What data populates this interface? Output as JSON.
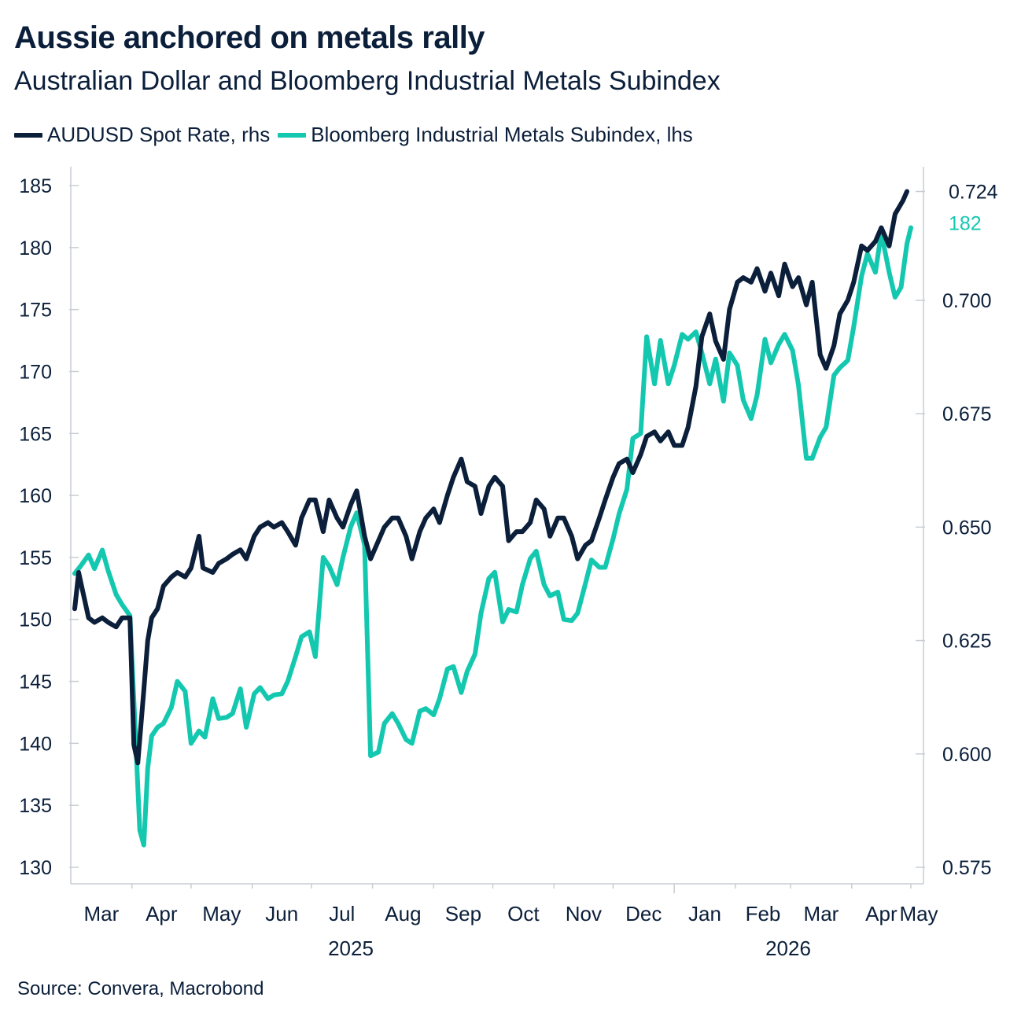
{
  "header": {
    "title": "Aussie anchored on metals rally",
    "subtitle": "Australian Dollar and Bloomberg Industrial Metals Subindex"
  },
  "legend": {
    "items": [
      {
        "label": "AUDUSD Spot Rate, rhs",
        "color": "#0b1f3a"
      },
      {
        "label": "Bloomberg Industrial Metals Subindex, lhs",
        "color": "#14c8b0"
      }
    ]
  },
  "footer": {
    "source": "Source: Convera, Macrobond"
  },
  "chart_data": {
    "type": "line",
    "x_axis": {
      "month_labels": [
        "Mar",
        "Apr",
        "May",
        "Jun",
        "Jul",
        "Aug",
        "Sep",
        "Oct",
        "Nov",
        "Dec",
        "Jan",
        "Feb",
        "Mar",
        "Apr",
        "May"
      ],
      "year_labels": [
        "2025",
        "2026"
      ],
      "start": "2025-03-01",
      "end": "2026-05-01"
    },
    "y_left": {
      "series": "Bloomberg Industrial Metals Subindex, lhs",
      "ylim": [
        130,
        185
      ],
      "ticks": [
        "185",
        "180",
        "175",
        "170",
        "165",
        "160",
        "155",
        "150",
        "145",
        "140",
        "135",
        "130"
      ]
    },
    "y_right": {
      "series": "AUDUSD Spot Rate, rhs",
      "ylim": [
        0.575,
        0.7253
      ],
      "ticks": [
        "0.700",
        "0.675",
        "0.650",
        "0.625",
        "0.600",
        "0.575"
      ]
    },
    "end_labels": {
      "AUDUSD Spot Rate, rhs": "0.724",
      "Bloomberg Industrial Metals Subindex, lhs": "182"
    },
    "grid": false,
    "legend_position": "top-left",
    "series": [
      {
        "name": "AUDUSD Spot Rate, rhs",
        "axis": "right",
        "color": "#0b1f3a",
        "points": [
          [
            "2025-03-03",
            0.632
          ],
          [
            "2025-03-05",
            0.64
          ],
          [
            "2025-03-07",
            0.636
          ],
          [
            "2025-03-10",
            0.63
          ],
          [
            "2025-03-13",
            0.629
          ],
          [
            "2025-03-17",
            0.63
          ],
          [
            "2025-03-20",
            0.629
          ],
          [
            "2025-03-24",
            0.628
          ],
          [
            "2025-03-27",
            0.63
          ],
          [
            "2025-03-31",
            0.63
          ],
          [
            "2025-04-02",
            0.602
          ],
          [
            "2025-04-04",
            0.598
          ],
          [
            "2025-04-07",
            0.614
          ],
          [
            "2025-04-09",
            0.625
          ],
          [
            "2025-04-11",
            0.63
          ],
          [
            "2025-04-14",
            0.632
          ],
          [
            "2025-04-17",
            0.637
          ],
          [
            "2025-04-21",
            0.639
          ],
          [
            "2025-04-24",
            0.64
          ],
          [
            "2025-04-28",
            0.639
          ],
          [
            "2025-05-01",
            0.641
          ],
          [
            "2025-05-05",
            0.648
          ],
          [
            "2025-05-07",
            0.641
          ],
          [
            "2025-05-12",
            0.64
          ],
          [
            "2025-05-15",
            0.642
          ],
          [
            "2025-05-19",
            0.643
          ],
          [
            "2025-05-22",
            0.644
          ],
          [
            "2025-05-26",
            0.645
          ],
          [
            "2025-05-29",
            0.643
          ],
          [
            "2025-06-02",
            0.648
          ],
          [
            "2025-06-05",
            0.65
          ],
          [
            "2025-06-09",
            0.651
          ],
          [
            "2025-06-12",
            0.65
          ],
          [
            "2025-06-16",
            0.651
          ],
          [
            "2025-06-19",
            0.649
          ],
          [
            "2025-06-23",
            0.646
          ],
          [
            "2025-06-26",
            0.652
          ],
          [
            "2025-06-30",
            0.656
          ],
          [
            "2025-07-03",
            0.656
          ],
          [
            "2025-07-07",
            0.649
          ],
          [
            "2025-07-10",
            0.656
          ],
          [
            "2025-07-14",
            0.652
          ],
          [
            "2025-07-17",
            0.65
          ],
          [
            "2025-07-21",
            0.655
          ],
          [
            "2025-07-24",
            0.658
          ],
          [
            "2025-07-28",
            0.648
          ],
          [
            "2025-07-31",
            0.643
          ],
          [
            "2025-08-04",
            0.647
          ],
          [
            "2025-08-07",
            0.65
          ],
          [
            "2025-08-11",
            0.652
          ],
          [
            "2025-08-14",
            0.652
          ],
          [
            "2025-08-18",
            0.648
          ],
          [
            "2025-08-21",
            0.643
          ],
          [
            "2025-08-25",
            0.649
          ],
          [
            "2025-08-28",
            0.652
          ],
          [
            "2025-09-01",
            0.654
          ],
          [
            "2025-09-04",
            0.651
          ],
          [
            "2025-09-08",
            0.657
          ],
          [
            "2025-09-11",
            0.661
          ],
          [
            "2025-09-15",
            0.665
          ],
          [
            "2025-09-18",
            0.66
          ],
          [
            "2025-09-22",
            0.659
          ],
          [
            "2025-09-25",
            0.653
          ],
          [
            "2025-09-29",
            0.659
          ],
          [
            "2025-10-02",
            0.661
          ],
          [
            "2025-10-06",
            0.659
          ],
          [
            "2025-10-09",
            0.647
          ],
          [
            "2025-10-13",
            0.649
          ],
          [
            "2025-10-16",
            0.649
          ],
          [
            "2025-10-20",
            0.651
          ],
          [
            "2025-10-23",
            0.656
          ],
          [
            "2025-10-27",
            0.654
          ],
          [
            "2025-10-30",
            0.648
          ],
          [
            "2025-11-03",
            0.652
          ],
          [
            "2025-11-06",
            0.652
          ],
          [
            "2025-11-10",
            0.648
          ],
          [
            "2025-11-13",
            0.643
          ],
          [
            "2025-11-17",
            0.646
          ],
          [
            "2025-11-20",
            0.647
          ],
          [
            "2025-11-24",
            0.652
          ],
          [
            "2025-11-27",
            0.656
          ],
          [
            "2025-12-01",
            0.661
          ],
          [
            "2025-12-04",
            0.664
          ],
          [
            "2025-12-08",
            0.665
          ],
          [
            "2025-12-11",
            0.662
          ],
          [
            "2025-12-15",
            0.666
          ],
          [
            "2025-12-18",
            0.67
          ],
          [
            "2025-12-22",
            0.671
          ],
          [
            "2025-12-25",
            0.669
          ],
          [
            "2025-12-29",
            0.671
          ],
          [
            "2026-01-01",
            0.668
          ],
          [
            "2026-01-05",
            0.668
          ],
          [
            "2026-01-08",
            0.672
          ],
          [
            "2026-01-12",
            0.681
          ],
          [
            "2026-01-15",
            0.692
          ],
          [
            "2026-01-19",
            0.697
          ],
          [
            "2026-01-22",
            0.691
          ],
          [
            "2026-01-26",
            0.687
          ],
          [
            "2026-01-29",
            0.698
          ],
          [
            "2026-02-02",
            0.704
          ],
          [
            "2026-02-05",
            0.705
          ],
          [
            "2026-02-09",
            0.704
          ],
          [
            "2026-02-12",
            0.707
          ],
          [
            "2026-02-16",
            0.702
          ],
          [
            "2026-02-19",
            0.706
          ],
          [
            "2026-02-23",
            0.701
          ],
          [
            "2026-02-26",
            0.708
          ],
          [
            "2026-03-02",
            0.703
          ],
          [
            "2026-03-05",
            0.705
          ],
          [
            "2026-03-09",
            0.699
          ],
          [
            "2026-03-12",
            0.704
          ],
          [
            "2026-03-16",
            0.688
          ],
          [
            "2026-03-19",
            0.685
          ],
          [
            "2026-03-23",
            0.69
          ],
          [
            "2026-03-26",
            0.697
          ],
          [
            "2026-03-30",
            0.7
          ],
          [
            "2026-04-02",
            0.704
          ],
          [
            "2026-04-06",
            0.712
          ],
          [
            "2026-04-09",
            0.711
          ],
          [
            "2026-04-13",
            0.713
          ],
          [
            "2026-04-16",
            0.716
          ],
          [
            "2026-04-20",
            0.712
          ],
          [
            "2026-04-23",
            0.719
          ],
          [
            "2026-04-27",
            0.722
          ],
          [
            "2026-04-29",
            0.724
          ]
        ]
      },
      {
        "name": "Bloomberg Industrial Metals Subindex, lhs",
        "axis": "left",
        "color": "#14c8b0",
        "points": [
          [
            "2025-03-03",
            153.7
          ],
          [
            "2025-03-06",
            154.3
          ],
          [
            "2025-03-10",
            155.2
          ],
          [
            "2025-03-13",
            154.1
          ],
          [
            "2025-03-17",
            155.6
          ],
          [
            "2025-03-20",
            153.9
          ],
          [
            "2025-03-24",
            152.0
          ],
          [
            "2025-03-27",
            151.2
          ],
          [
            "2025-03-31",
            150.3
          ],
          [
            "2025-04-03",
            140.0
          ],
          [
            "2025-04-05",
            133.0
          ],
          [
            "2025-04-07",
            131.8
          ],
          [
            "2025-04-09",
            138.0
          ],
          [
            "2025-04-11",
            140.6
          ],
          [
            "2025-04-14",
            141.3
          ],
          [
            "2025-04-17",
            141.6
          ],
          [
            "2025-04-21",
            142.9
          ],
          [
            "2025-04-24",
            145.0
          ],
          [
            "2025-04-28",
            144.2
          ],
          [
            "2025-05-01",
            140.0
          ],
          [
            "2025-05-05",
            141.0
          ],
          [
            "2025-05-08",
            140.5
          ],
          [
            "2025-05-12",
            143.6
          ],
          [
            "2025-05-15",
            142.0
          ],
          [
            "2025-05-19",
            142.1
          ],
          [
            "2025-05-22",
            142.4
          ],
          [
            "2025-05-26",
            144.4
          ],
          [
            "2025-05-29",
            141.3
          ],
          [
            "2025-06-02",
            144.0
          ],
          [
            "2025-06-05",
            144.5
          ],
          [
            "2025-06-09",
            143.6
          ],
          [
            "2025-06-12",
            143.9
          ],
          [
            "2025-06-16",
            144.0
          ],
          [
            "2025-06-19",
            145.0
          ],
          [
            "2025-06-23",
            147.0
          ],
          [
            "2025-06-26",
            148.6
          ],
          [
            "2025-06-30",
            149.0
          ],
          [
            "2025-07-03",
            147.0
          ],
          [
            "2025-07-07",
            155.0
          ],
          [
            "2025-07-10",
            154.3
          ],
          [
            "2025-07-14",
            152.8
          ],
          [
            "2025-07-17",
            155.0
          ],
          [
            "2025-07-21",
            157.5
          ],
          [
            "2025-07-24",
            158.6
          ],
          [
            "2025-07-28",
            156.0
          ],
          [
            "2025-07-31",
            139.0
          ],
          [
            "2025-08-04",
            139.3
          ],
          [
            "2025-08-07",
            141.6
          ],
          [
            "2025-08-11",
            142.4
          ],
          [
            "2025-08-14",
            141.6
          ],
          [
            "2025-08-18",
            140.3
          ],
          [
            "2025-08-21",
            140.0
          ],
          [
            "2025-08-25",
            142.6
          ],
          [
            "2025-08-28",
            142.8
          ],
          [
            "2025-09-01",
            142.3
          ],
          [
            "2025-09-04",
            143.6
          ],
          [
            "2025-09-08",
            146.0
          ],
          [
            "2025-09-11",
            146.2
          ],
          [
            "2025-09-15",
            144.1
          ],
          [
            "2025-09-18",
            145.8
          ],
          [
            "2025-09-22",
            147.2
          ],
          [
            "2025-09-25",
            150.5
          ],
          [
            "2025-09-29",
            153.3
          ],
          [
            "2025-10-02",
            153.8
          ],
          [
            "2025-10-06",
            149.8
          ],
          [
            "2025-10-09",
            150.8
          ],
          [
            "2025-10-13",
            150.6
          ],
          [
            "2025-10-16",
            152.8
          ],
          [
            "2025-10-20",
            154.9
          ],
          [
            "2025-10-23",
            155.5
          ],
          [
            "2025-10-27",
            152.8
          ],
          [
            "2025-10-30",
            151.9
          ],
          [
            "2025-11-03",
            152.2
          ],
          [
            "2025-11-06",
            150.0
          ],
          [
            "2025-11-10",
            149.9
          ],
          [
            "2025-11-13",
            150.5
          ],
          [
            "2025-11-17",
            152.9
          ],
          [
            "2025-11-20",
            154.8
          ],
          [
            "2025-11-24",
            154.2
          ],
          [
            "2025-11-27",
            154.2
          ],
          [
            "2025-12-01",
            156.5
          ],
          [
            "2025-12-04",
            158.5
          ],
          [
            "2025-12-08",
            160.5
          ],
          [
            "2025-12-11",
            164.6
          ],
          [
            "2025-12-15",
            165.0
          ],
          [
            "2025-12-18",
            172.8
          ],
          [
            "2025-12-22",
            169.0
          ],
          [
            "2025-12-25",
            172.5
          ],
          [
            "2025-12-29",
            169.0
          ],
          [
            "2026-01-01",
            170.5
          ],
          [
            "2026-01-05",
            173.0
          ],
          [
            "2026-01-08",
            172.6
          ],
          [
            "2026-01-12",
            173.2
          ],
          [
            "2026-01-15",
            171.5
          ],
          [
            "2026-01-19",
            169.0
          ],
          [
            "2026-01-22",
            171.0
          ],
          [
            "2026-01-26",
            167.6
          ],
          [
            "2026-01-29",
            171.5
          ],
          [
            "2026-02-02",
            170.5
          ],
          [
            "2026-02-05",
            167.7
          ],
          [
            "2026-02-09",
            166.2
          ],
          [
            "2026-02-12",
            168.1
          ],
          [
            "2026-02-16",
            172.6
          ],
          [
            "2026-02-19",
            170.7
          ],
          [
            "2026-02-23",
            172.2
          ],
          [
            "2026-02-26",
            173.0
          ],
          [
            "2026-03-02",
            171.7
          ],
          [
            "2026-03-05",
            168.9
          ],
          [
            "2026-03-09",
            163.0
          ],
          [
            "2026-03-12",
            163.0
          ],
          [
            "2026-03-16",
            164.7
          ],
          [
            "2026-03-19",
            165.5
          ],
          [
            "2026-03-23",
            169.7
          ],
          [
            "2026-03-26",
            170.3
          ],
          [
            "2026-03-30",
            170.9
          ],
          [
            "2026-04-02",
            173.6
          ],
          [
            "2026-04-06",
            177.7
          ],
          [
            "2026-04-09",
            179.5
          ],
          [
            "2026-04-13",
            178.0
          ],
          [
            "2026-04-16",
            181.2
          ],
          [
            "2026-04-20",
            178.0
          ],
          [
            "2026-04-23",
            176.0
          ],
          [
            "2026-04-26",
            176.8
          ],
          [
            "2026-04-29",
            180.3
          ],
          [
            "2026-05-01",
            181.6
          ]
        ]
      }
    ]
  }
}
